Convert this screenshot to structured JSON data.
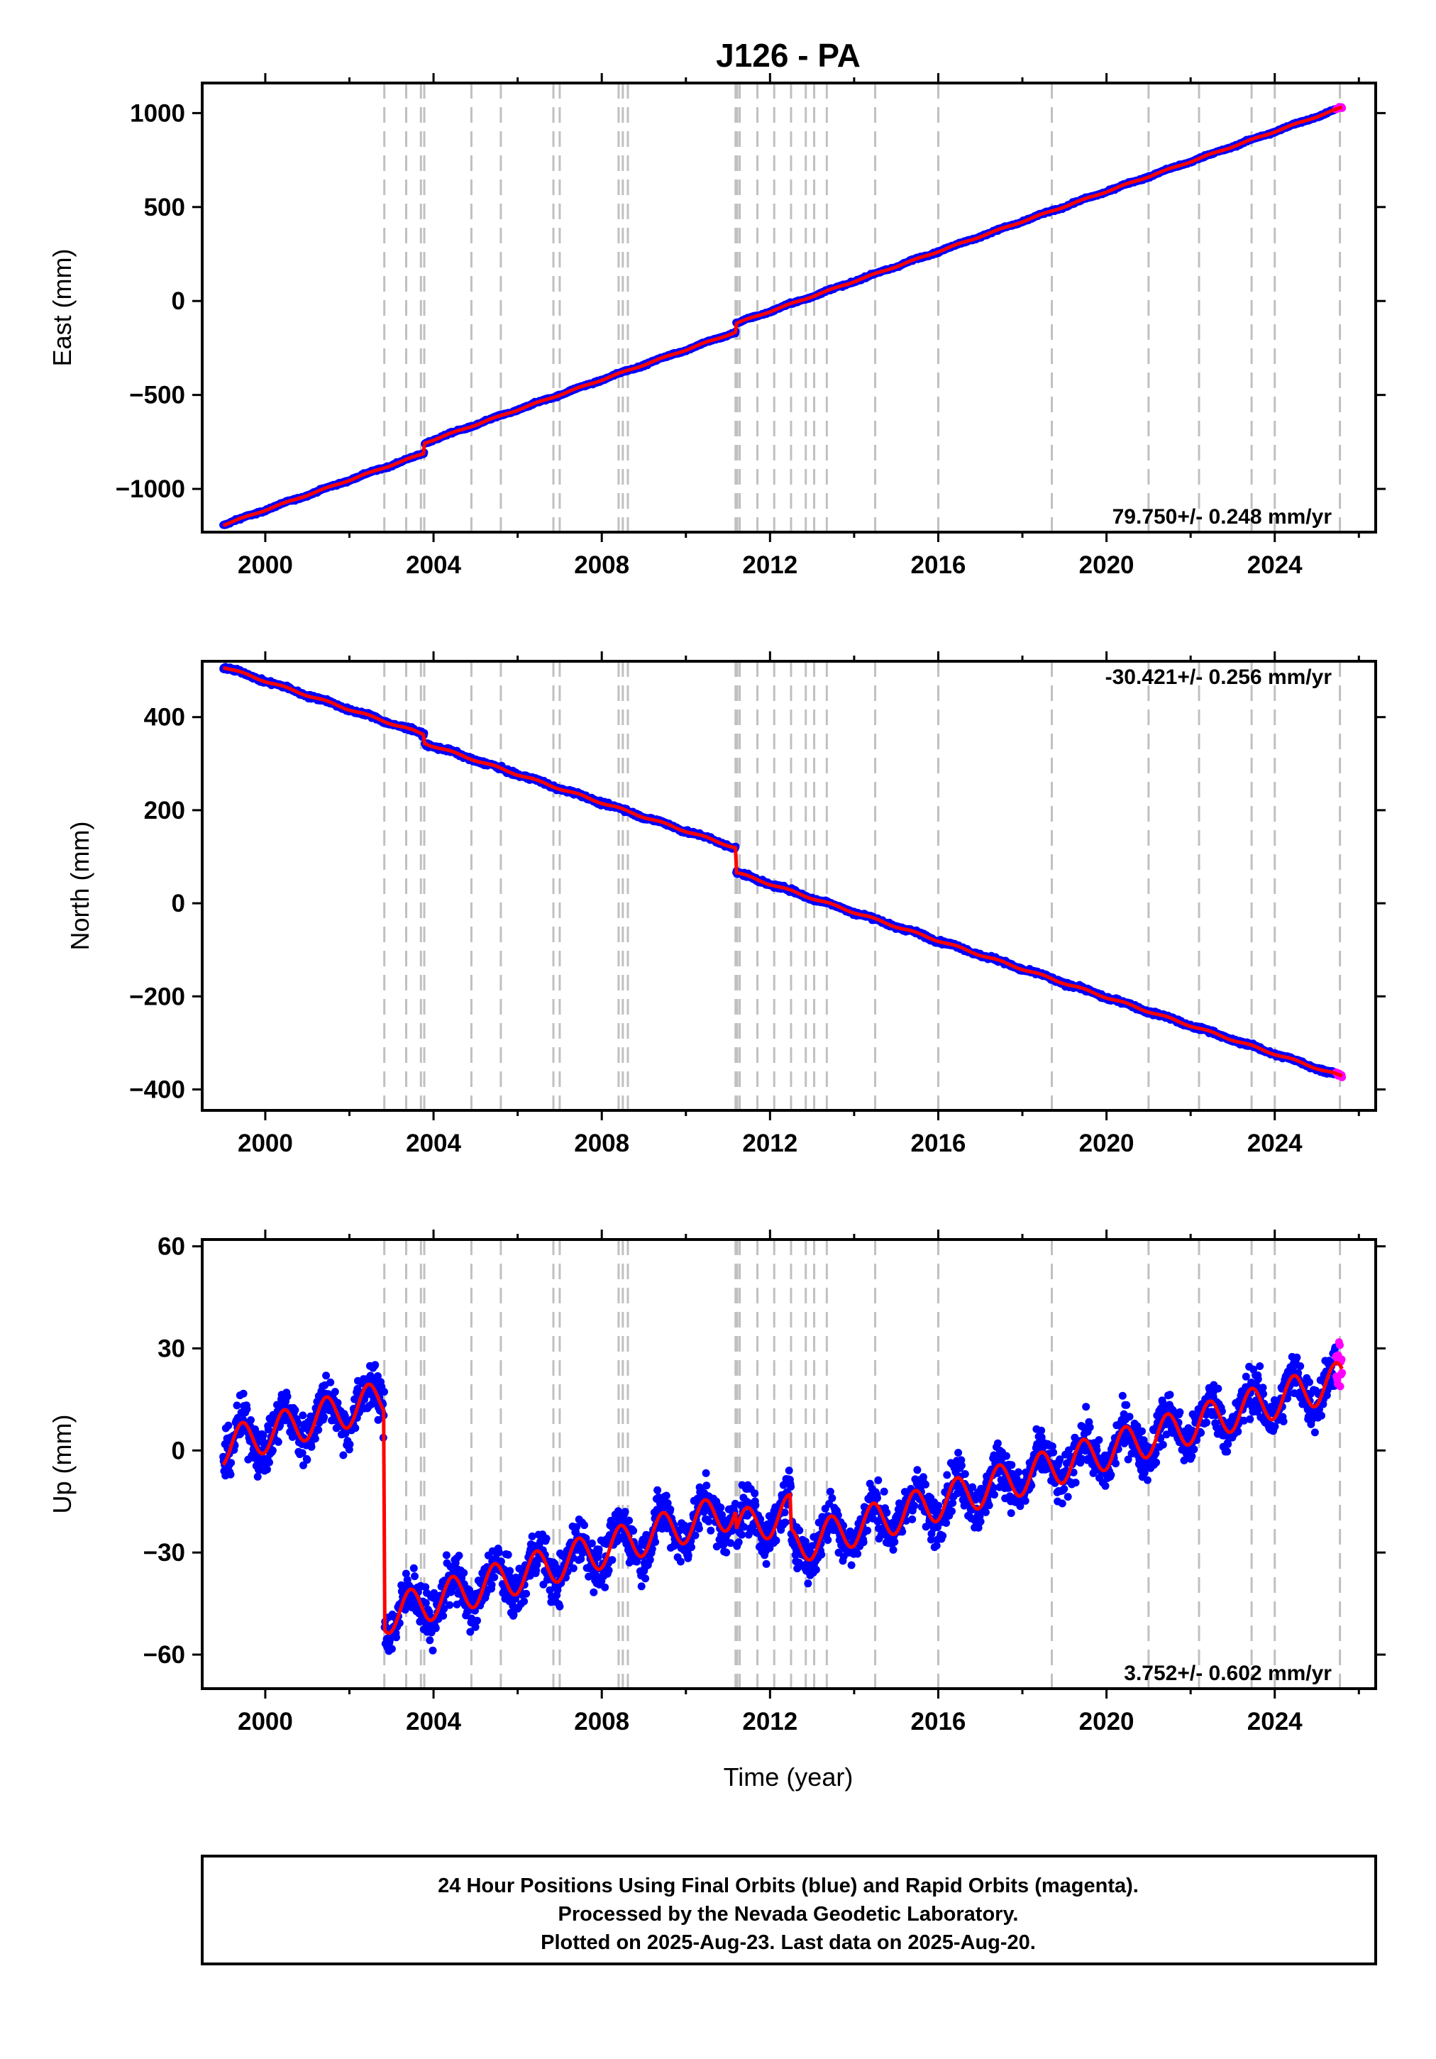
{
  "title": "J126 - PA",
  "colors": {
    "final_orbits": "#0000ff",
    "rapid_orbits": "#ff00ff",
    "model": "#ff0000",
    "offset_lines": "#c0c0c0",
    "axes": "#000000"
  },
  "time_axis": {
    "label": "Time (year)",
    "range": [
      1998.5,
      2026.4
    ],
    "ticks": [
      2000,
      2004,
      2008,
      2012,
      2016,
      2020,
      2024
    ],
    "tick_labels": [
      "2000",
      "2004",
      "2008",
      "2012",
      "2016",
      "2020",
      "2024"
    ],
    "minor_ticks": [
      2002,
      2006,
      2010,
      2014,
      2018,
      2022,
      2026
    ]
  },
  "offset_epochs": [
    2002.83,
    2003.35,
    2003.7,
    2003.78,
    2004.9,
    2005.6,
    2006.85,
    2007.0,
    2008.4,
    2008.5,
    2008.62,
    2011.18,
    2011.22,
    2011.28,
    2011.7,
    2012.1,
    2012.5,
    2012.85,
    2013.05,
    2013.35,
    2014.5,
    2016.0,
    2018.7,
    2021.0,
    2022.2,
    2023.45,
    2024.0,
    2025.55
  ],
  "chart_data": [
    {
      "type": "scatter",
      "component": "east",
      "ylabel": "East (mm)",
      "ylim": [
        -1230,
        1160
      ],
      "yticks": [
        -1000,
        -500,
        0,
        500,
        1000
      ],
      "ytick_labels": [
        "−1000",
        "−500",
        "0",
        "500",
        "1000"
      ],
      "rate_text": "79.750+/- 0.248 mm/yr",
      "rate_position": "bottom-right",
      "start_year": 1999.0,
      "end_year": 2025.6,
      "rate_mm_yr": 79.75,
      "value_at_start": -1192,
      "steps": [
        {
          "year": 2003.78,
          "offset": 55
        },
        {
          "year": 2011.19,
          "offset": 45
        }
      ],
      "seasonal_amplitude": 3,
      "scatter": 4,
      "series": [
        {
          "name": "Final Orbits (blue)",
          "color": "#0000ff"
        },
        {
          "name": "Rapid Orbits (magenta)",
          "color": "#ff00ff"
        },
        {
          "color": "#ff0000"
        }
      ]
    },
    {
      "type": "scatter",
      "component": "north",
      "ylabel": "North (mm)",
      "ylim": [
        -445,
        520
      ],
      "yticks": [
        -400,
        -200,
        0,
        200,
        400
      ],
      "ytick_labels": [
        "−400",
        "−200",
        "0",
        "200",
        "400"
      ],
      "rate_text": "-30.421+/- 0.256 mm/yr",
      "rate_position": "top-right",
      "start_year": 1999.0,
      "end_year": 2025.6,
      "rate_mm_yr": -30.421,
      "value_at_start": 508,
      "steps": [
        {
          "year": 2003.78,
          "offset": -18
        },
        {
          "year": 2011.19,
          "offset": -53
        }
      ],
      "seasonal_amplitude": 2,
      "scatter": 3,
      "series": [
        {
          "name": "Final Orbits (blue)",
          "color": "#0000ff"
        },
        {
          "name": "Rapid Orbits (magenta)",
          "color": "#ff00ff"
        },
        {
          "color": "#ff0000"
        }
      ]
    },
    {
      "type": "scatter",
      "component": "up",
      "ylabel": "Up (mm)",
      "ylim": [
        -70,
        62
      ],
      "yticks": [
        -60,
        -30,
        0,
        30,
        60
      ],
      "ytick_labels": [
        "−60",
        "−30",
        "0",
        "30",
        "60"
      ],
      "rate_text": "3.752+/- 0.602 mm/yr",
      "rate_position": "bottom-right",
      "start_year": 1999.0,
      "end_year": 2025.6,
      "rate_mm_yr": 3.752,
      "value_at_start": 1,
      "steps": [
        {
          "year": 2002.83,
          "offset": -64
        },
        {
          "year": 2011.19,
          "offset": -6
        },
        {
          "year": 2012.5,
          "offset": -10
        }
      ],
      "seasonal_amplitude": 5.5,
      "scatter": 5,
      "series": [
        {
          "name": "Final Orbits (blue)",
          "color": "#0000ff"
        },
        {
          "name": "Rapid Orbits (magenta)",
          "color": "#ff00ff"
        },
        {
          "color": "#ff0000"
        }
      ]
    }
  ],
  "footer": {
    "line1": "24 Hour Positions Using Final Orbits (blue) and Rapid Orbits (magenta).",
    "line2": "Processed by the Nevada Geodetic Laboratory.",
    "line3": "Plotted on 2025-Aug-23. Last data on 2025-Aug-20."
  }
}
